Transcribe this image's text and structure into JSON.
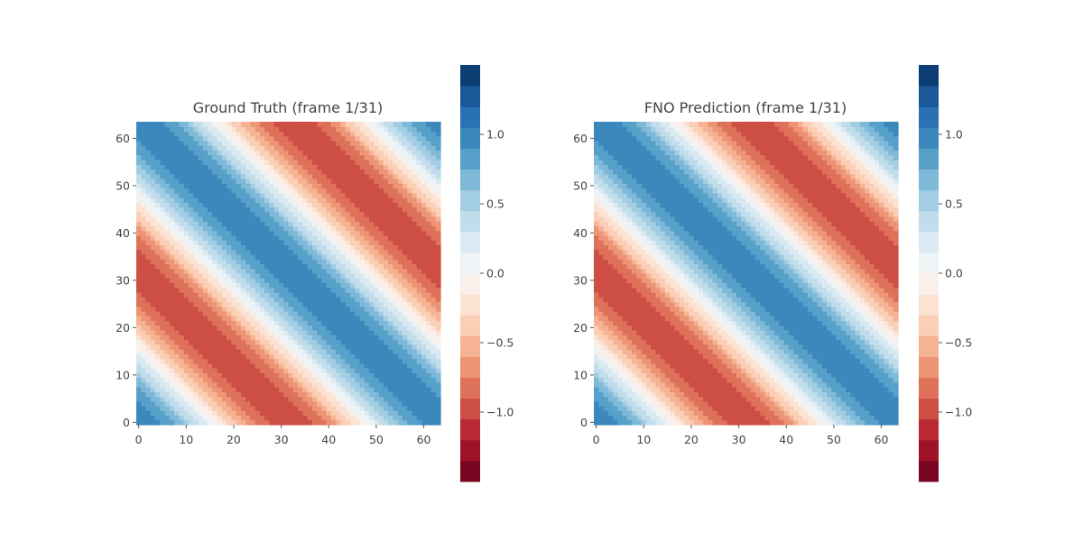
{
  "chart_data": [
    {
      "type": "heatmap",
      "title": "Ground Truth (frame 1/31)",
      "grid_size": [
        64,
        64
      ],
      "field": "sin(2*pi*(x+y)/64 + 1.6)",
      "x_ticks": [
        "0",
        "10",
        "20",
        "30",
        "40",
        "50",
        "60"
      ],
      "y_ticks": [
        "0",
        "10",
        "20",
        "30",
        "40",
        "50",
        "60"
      ],
      "x_range": [
        0,
        63
      ],
      "y_range": [
        0,
        63
      ],
      "grid": false,
      "colorbar": {
        "cmap": "RdBu",
        "levels": 20,
        "vmin": -1.5,
        "vmax": 1.5,
        "ticks": [
          "1.0",
          "0.5",
          "0.0",
          "−0.5",
          "−1.0"
        ],
        "tick_values": [
          1.0,
          0.5,
          0.0,
          -0.5,
          -1.0
        ]
      }
    },
    {
      "type": "heatmap",
      "title": "FNO Prediction (frame 1/31)",
      "grid_size": [
        64,
        64
      ],
      "field": "sin(2*pi*(x+y)/64 + 1.6)",
      "x_ticks": [
        "0",
        "10",
        "20",
        "30",
        "40",
        "50",
        "60"
      ],
      "y_ticks": [
        "0",
        "10",
        "20",
        "30",
        "40",
        "50",
        "60"
      ],
      "x_range": [
        0,
        63
      ],
      "y_range": [
        0,
        63
      ],
      "grid": false,
      "colorbar": {
        "cmap": "RdBu",
        "levels": 20,
        "vmin": -1.5,
        "vmax": 1.5,
        "ticks": [
          "1.0",
          "0.5",
          "0.0",
          "−0.5",
          "−1.0"
        ],
        "tick_values": [
          1.0,
          0.5,
          0.0,
          -0.5,
          -1.0
        ]
      }
    }
  ]
}
